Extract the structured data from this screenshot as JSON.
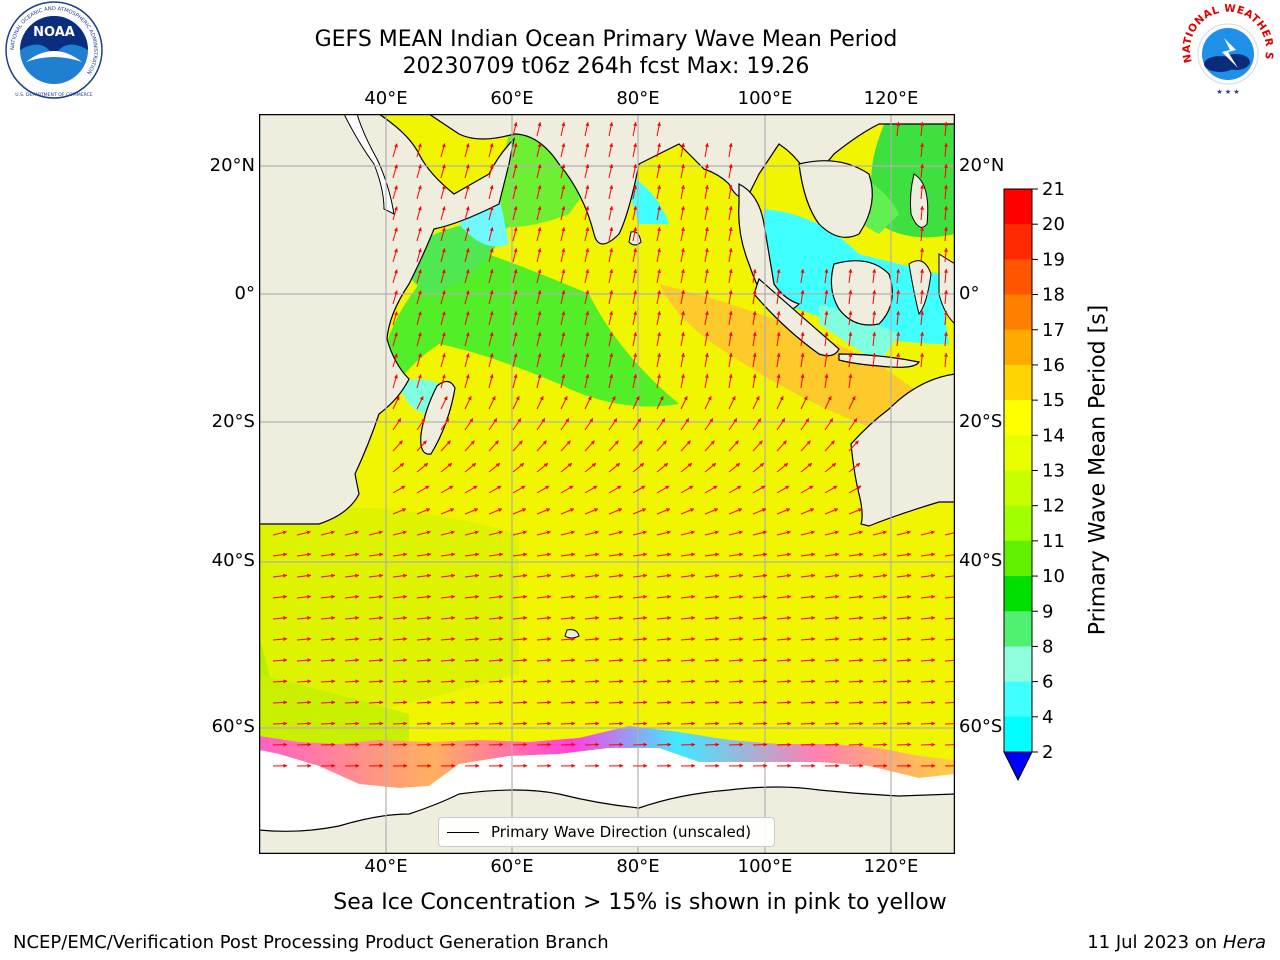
{
  "title": {
    "line1": "GEFS MEAN Indian Ocean Primary Wave Mean Period",
    "line2": "20230709 t06z 264h fcst   Max: 19.26"
  },
  "logos": {
    "left": {
      "name": "NOAA",
      "ring_text": "NATIONAL OCEANIC AND ATMOSPHERIC ADMINISTRATION",
      "bottom_text": "U.S. DEPARTMENT OF COMMERCE"
    },
    "right": {
      "ring_text": "NATIONAL WEATHER SERVICE"
    }
  },
  "map": {
    "region": "Indian Ocean",
    "lon_range": [
      20,
      130
    ],
    "lat_range": [
      -74,
      28
    ],
    "lon_ticks": [
      "40°E",
      "60°E",
      "80°E",
      "100°E",
      "120°E"
    ],
    "lat_ticks": [
      "20°N",
      "0°",
      "20°S",
      "40°S",
      "60°S"
    ],
    "grid": true,
    "colors": {
      "land": "#efedde",
      "ice_free_polar": "#ffffff",
      "arrow": "#ff0000",
      "coast": "#000000",
      "grid": "#b0b0b0"
    }
  },
  "legend": {
    "label": "Primary Wave Direction (unscaled)",
    "placement": "lower-center"
  },
  "colorbar": {
    "label": "Primary Wave Mean Period [s]",
    "ticks": [
      "21",
      "20",
      "19",
      "18",
      "17",
      "16",
      "15",
      "14",
      "13",
      "12",
      "11",
      "10",
      "9",
      "8",
      "6",
      "4",
      "2"
    ],
    "colors_top_to_bottom": [
      "#ff0000",
      "#ff2a00",
      "#ff5500",
      "#ff8000",
      "#ffaa00",
      "#ffd400",
      "#ffff00",
      "#e8ff00",
      "#c8ff00",
      "#a0ff00",
      "#60f000",
      "#00e000",
      "#50f070",
      "#90ffe0",
      "#40ffff",
      "#00ffff",
      "#00c8ff",
      "#0050ff"
    ],
    "extend_min_color": "#0000ff"
  },
  "subtitle": "Sea Ice Concentration > 15% is shown in pink to yellow",
  "footer": {
    "left": "NCEP/EMC/Verification Post Processing Product Generation Branch",
    "right_date": "11 Jul 2023 on ",
    "right_host": "Hera"
  }
}
